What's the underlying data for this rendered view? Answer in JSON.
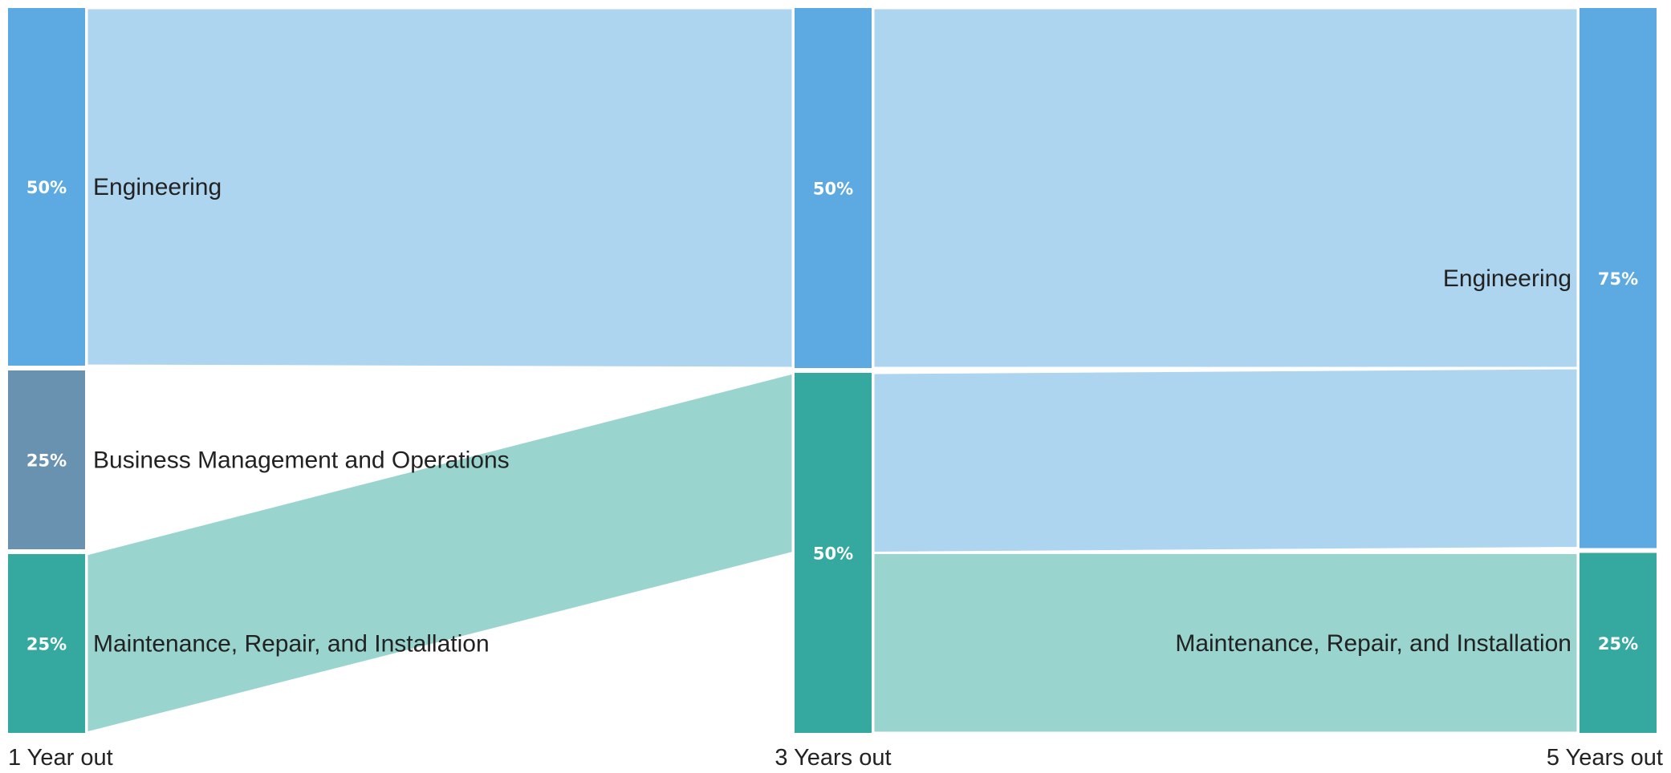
{
  "chart_data": {
    "type": "sankey",
    "columns": [
      {
        "label": "1 Year out",
        "nodes": [
          {
            "name": "Engineering",
            "value": 50,
            "display": "50%",
            "color": "#5DA9E1"
          },
          {
            "name": "Business Management and Operations",
            "value": 25,
            "display": "25%",
            "color": "#6992B1"
          },
          {
            "name": "Maintenance, Repair, and Installation",
            "value": 25,
            "display": "25%",
            "color": "#35A9A0"
          }
        ]
      },
      {
        "label": "3 Years out",
        "nodes": [
          {
            "name": "Engineering",
            "value": 50,
            "display": "50%",
            "color": "#5DA9E1"
          },
          {
            "name": "Maintenance, Repair, and Installation",
            "value": 50,
            "display": "50%",
            "color": "#35A9A0"
          }
        ]
      },
      {
        "label": "5 Years out",
        "nodes": [
          {
            "name": "Engineering",
            "value": 75,
            "display": "75%",
            "color": "#5DA9E1"
          },
          {
            "name": "Maintenance, Repair, and Installation",
            "value": 25,
            "display": "25%",
            "color": "#35A9A0"
          }
        ]
      }
    ],
    "links": [
      {
        "from": [
          0,
          0
        ],
        "to": [
          1,
          0
        ],
        "value": 50,
        "color": "#AED5F0"
      },
      {
        "from": [
          0,
          2
        ],
        "to": [
          1,
          1
        ],
        "value": 25,
        "color": "#99D5CE"
      },
      {
        "from": [
          1,
          0
        ],
        "to": [
          2,
          0
        ],
        "value": 50,
        "color": "#AED5F0"
      },
      {
        "from": [
          1,
          1
        ],
        "to": [
          2,
          0
        ],
        "value": 25,
        "color": "#AED5F0"
      },
      {
        "from": [
          1,
          1
        ],
        "to": [
          2,
          1
        ],
        "value": 25,
        "color": "#99D5CE"
      }
    ]
  }
}
